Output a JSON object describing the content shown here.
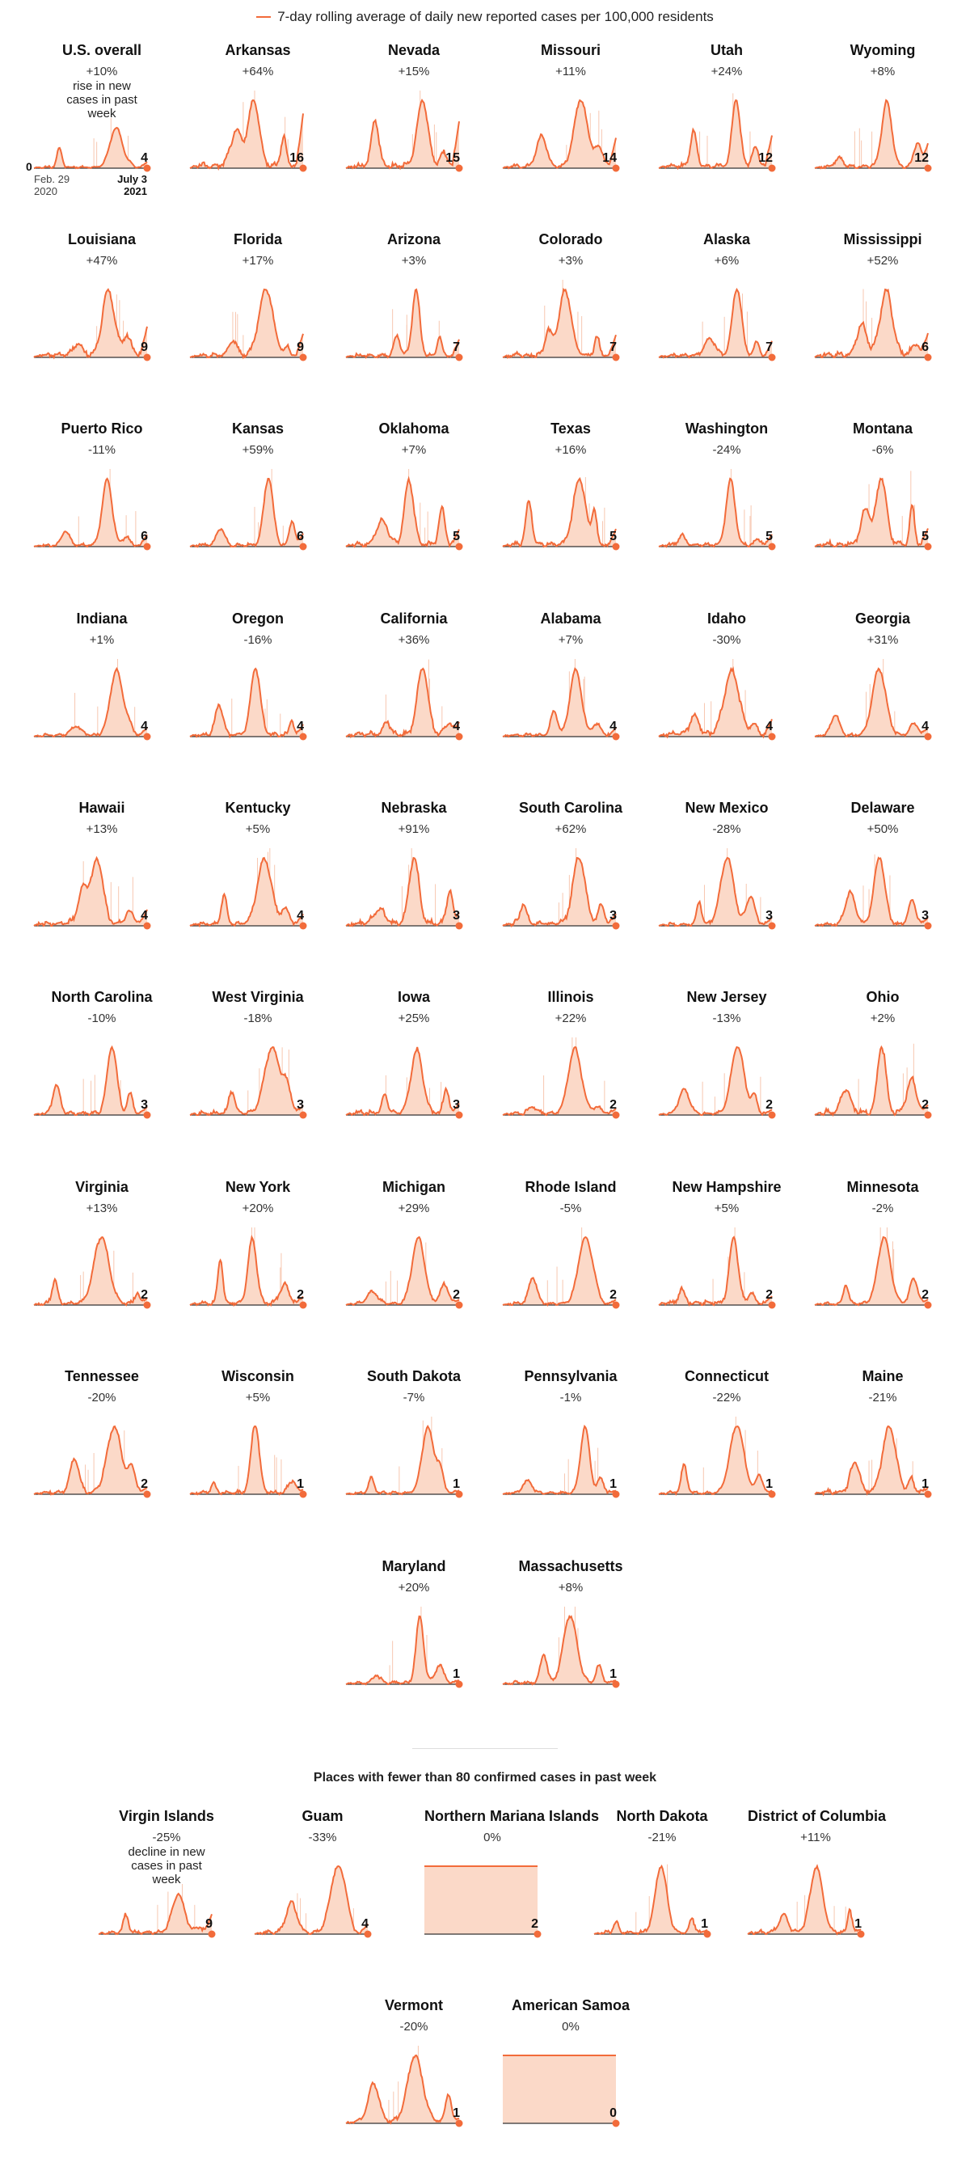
{
  "legend": {
    "label": "7-day rolling average of daily new reported cases per 100,000 residents"
  },
  "colors": {
    "line": "#f26b3a",
    "fill": "#fbd9c8",
    "spike": "#f7c7b0",
    "baseline": "#333333"
  },
  "axis": {
    "start_line1": "Feb. 29",
    "start_line2": "2020",
    "end_line1": "July 3",
    "end_line2": "2021",
    "zero": "0"
  },
  "overall_note": "rise in new cases in past week",
  "small_note": "decline in new cases in past week",
  "small_section_title": "Places with fewer than 80 confirmed cases in past week",
  "chart_data": {
    "type": "area",
    "x_start": "Feb. 29 2020",
    "x_end": "July 3 2021",
    "states": [
      {
        "name": "U.S. overall",
        "change": "+10%",
        "value": 4
      },
      {
        "name": "Arkansas",
        "change": "+64%",
        "value": 16
      },
      {
        "name": "Nevada",
        "change": "+15%",
        "value": 15
      },
      {
        "name": "Missouri",
        "change": "+11%",
        "value": 14
      },
      {
        "name": "Utah",
        "change": "+24%",
        "value": 12
      },
      {
        "name": "Wyoming",
        "change": "+8%",
        "value": 12
      },
      {
        "name": "Louisiana",
        "change": "+47%",
        "value": 9
      },
      {
        "name": "Florida",
        "change": "+17%",
        "value": 9
      },
      {
        "name": "Arizona",
        "change": "+3%",
        "value": 7
      },
      {
        "name": "Colorado",
        "change": "+3%",
        "value": 7
      },
      {
        "name": "Alaska",
        "change": "+6%",
        "value": 7
      },
      {
        "name": "Mississippi",
        "change": "+52%",
        "value": 6
      },
      {
        "name": "Puerto Rico",
        "change": "-11%",
        "value": 6
      },
      {
        "name": "Kansas",
        "change": "+59%",
        "value": 6
      },
      {
        "name": "Oklahoma",
        "change": "+7%",
        "value": 5
      },
      {
        "name": "Texas",
        "change": "+16%",
        "value": 5
      },
      {
        "name": "Washington",
        "change": "-24%",
        "value": 5
      },
      {
        "name": "Montana",
        "change": "-6%",
        "value": 5
      },
      {
        "name": "Indiana",
        "change": "+1%",
        "value": 4
      },
      {
        "name": "Oregon",
        "change": "-16%",
        "value": 4
      },
      {
        "name": "California",
        "change": "+36%",
        "value": 4
      },
      {
        "name": "Alabama",
        "change": "+7%",
        "value": 4
      },
      {
        "name": "Idaho",
        "change": "-30%",
        "value": 4
      },
      {
        "name": "Georgia",
        "change": "+31%",
        "value": 4
      },
      {
        "name": "Hawaii",
        "change": "+13%",
        "value": 4
      },
      {
        "name": "Kentucky",
        "change": "+5%",
        "value": 4
      },
      {
        "name": "Nebraska",
        "change": "+91%",
        "value": 3
      },
      {
        "name": "South Carolina",
        "change": "+62%",
        "value": 3
      },
      {
        "name": "New Mexico",
        "change": "-28%",
        "value": 3
      },
      {
        "name": "Delaware",
        "change": "+50%",
        "value": 3
      },
      {
        "name": "North Carolina",
        "change": "-10%",
        "value": 3
      },
      {
        "name": "West Virginia",
        "change": "-18%",
        "value": 3
      },
      {
        "name": "Iowa",
        "change": "+25%",
        "value": 3
      },
      {
        "name": "Illinois",
        "change": "+22%",
        "value": 2
      },
      {
        "name": "New Jersey",
        "change": "-13%",
        "value": 2
      },
      {
        "name": "Ohio",
        "change": "+2%",
        "value": 2
      },
      {
        "name": "Virginia",
        "change": "+13%",
        "value": 2
      },
      {
        "name": "New York",
        "change": "+20%",
        "value": 2
      },
      {
        "name": "Michigan",
        "change": "+29%",
        "value": 2
      },
      {
        "name": "Rhode Island",
        "change": "-5%",
        "value": 2
      },
      {
        "name": "New Hampshire",
        "change": "+5%",
        "value": 2
      },
      {
        "name": "Minnesota",
        "change": "-2%",
        "value": 2
      },
      {
        "name": "Tennessee",
        "change": "-20%",
        "value": 2
      },
      {
        "name": "Wisconsin",
        "change": "+5%",
        "value": 1
      },
      {
        "name": "South Dakota",
        "change": "-7%",
        "value": 1
      },
      {
        "name": "Pennsylvania",
        "change": "-1%",
        "value": 1
      },
      {
        "name": "Connecticut",
        "change": "-22%",
        "value": 1
      },
      {
        "name": "Maine",
        "change": "-21%",
        "value": 1
      },
      {
        "name": "Maryland",
        "change": "+20%",
        "value": 1
      },
      {
        "name": "Massachusetts",
        "change": "+8%",
        "value": 1
      }
    ],
    "small_places": [
      {
        "name": "Virgin Islands",
        "change": "-25%",
        "value": 9
      },
      {
        "name": "Guam",
        "change": "-33%",
        "value": 4
      },
      {
        "name": "Northern Mariana Islands",
        "change": "0%",
        "value": 2
      },
      {
        "name": "North Dakota",
        "change": "-21%",
        "value": 1
      },
      {
        "name": "District of Columbia",
        "change": "+11%",
        "value": 1
      },
      {
        "name": "Vermont",
        "change": "-20%",
        "value": 1
      },
      {
        "name": "American Samoa",
        "change": "0%",
        "value": 0
      }
    ]
  }
}
